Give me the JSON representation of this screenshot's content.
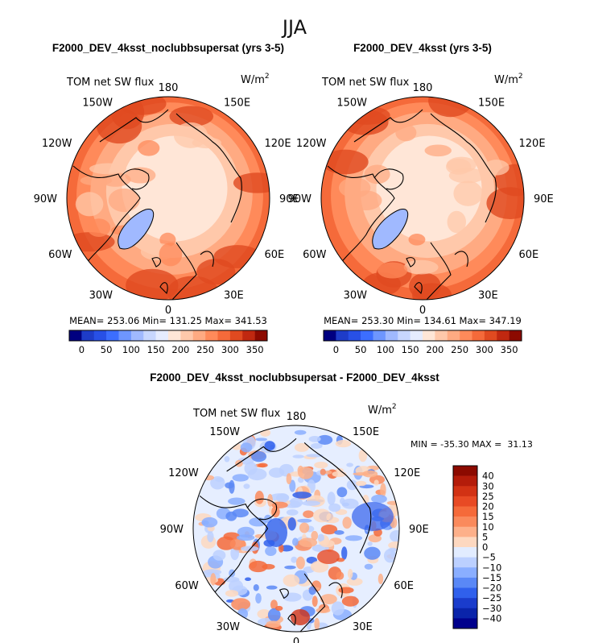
{
  "chart_data": [
    {
      "type": "heatmap",
      "projection": "north-polar-stereographic",
      "season": "JJA",
      "title": "F2000_DEV_4ksst_noclubbsupersat (yrs 3-5)",
      "variable": "TOM net SW flux",
      "units": "W/m",
      "units_exp": "2",
      "lon_labels": [
        "180",
        "150E",
        "120E",
        "90E",
        "60E",
        "30E",
        "0",
        "30W",
        "60W",
        "90W",
        "120W",
        "150W"
      ],
      "stats": {
        "mean": "253.06",
        "min": "131.25",
        "max": "341.53"
      },
      "stats_text": {
        "mean_label": "MEAN=",
        "min_label": "Min=",
        "max_label": "Max="
      },
      "colorbar": {
        "levels": [
          0,
          25,
          50,
          75,
          100,
          125,
          150,
          175,
          200,
          225,
          250,
          275,
          300,
          325,
          350
        ],
        "tick_labels": [
          "0",
          "50",
          "100",
          "150",
          "200",
          "250",
          "300",
          "350"
        ],
        "colors": [
          "#000080",
          "#1e3cc8",
          "#2850e6",
          "#3c6eff",
          "#6e96ff",
          "#a0b9ff",
          "#c8d7ff",
          "#e6ecff",
          "#ffe6d7",
          "#ffc8aa",
          "#ffaa82",
          "#ff8a5a",
          "#f56a3a",
          "#e04a20",
          "#c02810",
          "#8c0a00"
        ]
      }
    },
    {
      "type": "heatmap",
      "projection": "north-polar-stereographic",
      "season": "JJA",
      "title": "F2000_DEV_4ksst (yrs 3-5)",
      "variable": "TOM net SW flux",
      "units": "W/m",
      "units_exp": "2",
      "lon_labels": [
        "180",
        "150E",
        "120E",
        "90E",
        "60E",
        "30E",
        "0",
        "30W",
        "60W",
        "90W",
        "120W",
        "150W"
      ],
      "stats": {
        "mean": "253.30",
        "min": "134.61",
        "max": "347.19"
      },
      "stats_text": {
        "mean_label": "MEAN=",
        "min_label": "Min=",
        "max_label": "Max="
      },
      "colorbar": {
        "levels": [
          0,
          25,
          50,
          75,
          100,
          125,
          150,
          175,
          200,
          225,
          250,
          275,
          300,
          325,
          350
        ],
        "tick_labels": [
          "0",
          "50",
          "100",
          "150",
          "200",
          "250",
          "300",
          "350"
        ],
        "colors": [
          "#000080",
          "#1e3cc8",
          "#2850e6",
          "#3c6eff",
          "#6e96ff",
          "#a0b9ff",
          "#c8d7ff",
          "#e6ecff",
          "#ffe6d7",
          "#ffc8aa",
          "#ffaa82",
          "#ff8a5a",
          "#f56a3a",
          "#e04a20",
          "#c02810",
          "#8c0a00"
        ]
      }
    },
    {
      "type": "heatmap",
      "projection": "north-polar-stereographic",
      "title": "F2000_DEV_4ksst_noclubbsupersat - F2000_DEV_4ksst",
      "variable": "TOM net SW flux",
      "units": "W/m",
      "units_exp": "2",
      "lon_labels": [
        "180",
        "150E",
        "120E",
        "90E",
        "60E",
        "30E",
        "0",
        "30W",
        "60W",
        "90W",
        "120W",
        "150W"
      ],
      "stats_text": "MIN = -35.30 MAX =  31.13",
      "stats": {
        "min": "-35.30",
        "max": "31.13"
      },
      "colorbar": {
        "tick_labels": [
          "40",
          "30",
          "25",
          "20",
          "15",
          "10",
          "5",
          "0",
          "−5",
          "−10",
          "−15",
          "−20",
          "−25",
          "−30",
          "−40"
        ],
        "colors": [
          "#8c0a00",
          "#b41c0a",
          "#d23214",
          "#e84a24",
          "#f56a3a",
          "#fa8a5c",
          "#fdb08a",
          "#fdd8c0",
          "#e2ecff",
          "#bcd0ff",
          "#8aaeff",
          "#5a88f6",
          "#3060ec",
          "#1a3ccc",
          "#0a24aa",
          "#00008c"
        ]
      }
    }
  ],
  "page": {
    "season_title": "JJA"
  },
  "colors": {
    "map_land": "#000000",
    "plus": "#ffffff"
  }
}
